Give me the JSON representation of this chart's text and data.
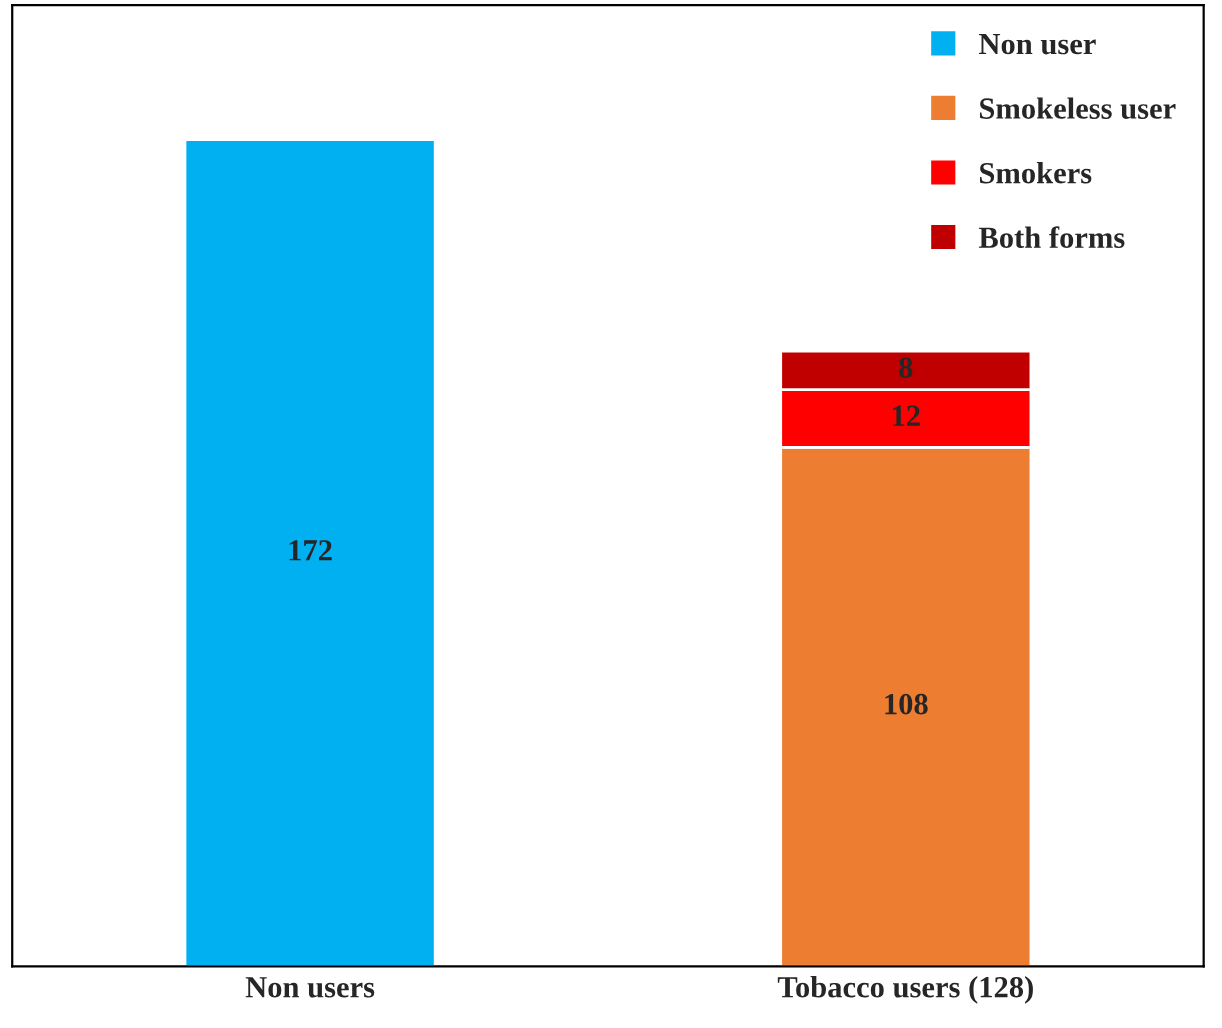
{
  "chart_data": {
    "type": "bar",
    "stacked": true,
    "categories": [
      "Non users",
      "Tobacco users (128)"
    ],
    "series": [
      {
        "name": "Non user",
        "color": "#00b0f0",
        "values": [
          172,
          null
        ]
      },
      {
        "name": "Smokeless user",
        "color": "#ed7d31",
        "values": [
          null,
          108
        ]
      },
      {
        "name": "Smokers",
        "color": "#ff0000",
        "values": [
          null,
          12
        ]
      },
      {
        "name": "Both forms",
        "color": "#c00000",
        "values": [
          null,
          8
        ]
      }
    ],
    "ylim": [
      0,
      200
    ],
    "tick_labels": "x",
    "data_labels": true,
    "legend": "top right",
    "grid": false
  }
}
